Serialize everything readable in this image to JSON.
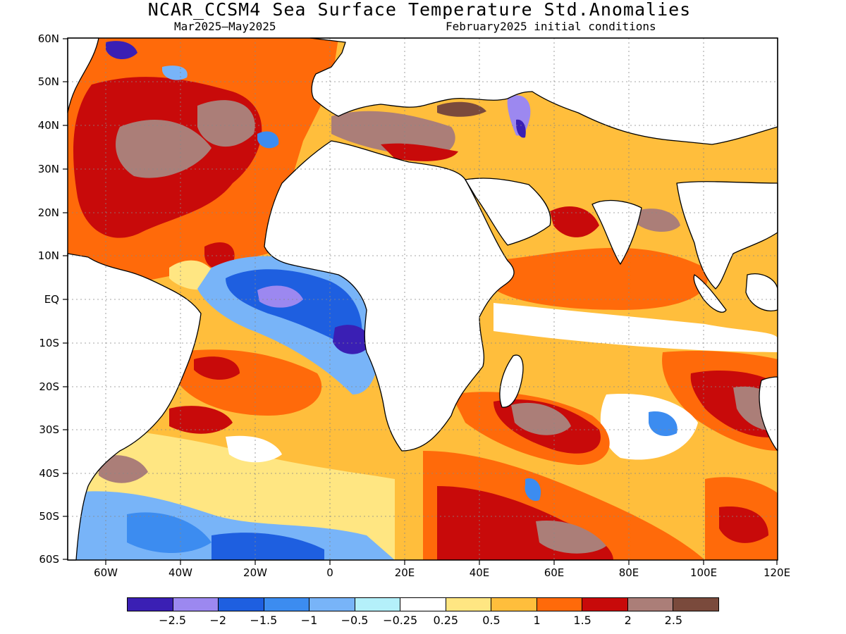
{
  "title": "NCAR_CCSM4 Sea Surface Temperature Std.Anomalies",
  "period": "Mar2025–May2025",
  "init": "February2025 initial conditions",
  "lat_labels": [
    "60N",
    "50N",
    "40N",
    "30N",
    "20N",
    "10N",
    "EQ",
    "10S",
    "20S",
    "30S",
    "40S",
    "50S",
    "60S"
  ],
  "lon_labels": [
    "60W",
    "40W",
    "20W",
    "0",
    "20E",
    "40E",
    "60E",
    "80E",
    "100E",
    "120E"
  ],
  "colorbar": {
    "colors": [
      "#3a1fb4",
      "#9c88f0",
      "#1e5fe0",
      "#3c8cf0",
      "#78b4f8",
      "#b4f0fa",
      "#ffffff",
      "#ffe682",
      "#ffbe3c",
      "#ff6a0a",
      "#c80a0a",
      "#ab7e78",
      "#7a4a3c"
    ],
    "labels": [
      "−2.5",
      "−2",
      "−1.5",
      "−1",
      "−0.5",
      "−0.25",
      "0.25",
      "0.5",
      "1",
      "1.5",
      "2",
      "2.5"
    ]
  }
}
